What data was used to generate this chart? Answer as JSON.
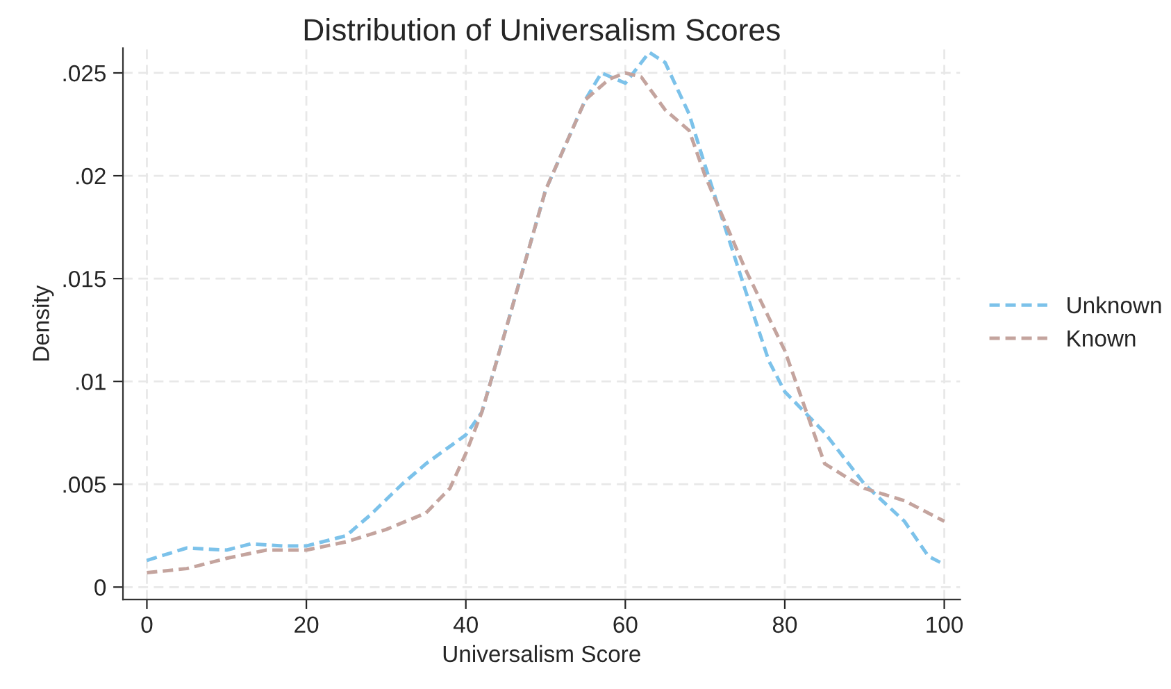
{
  "chart_data": {
    "type": "line",
    "title": "Distribution of Universalism Scores",
    "xlabel": "Universalism Score",
    "ylabel": "Density",
    "xlim": [
      -3,
      102
    ],
    "xticks": [
      0,
      20,
      40,
      60,
      80,
      100
    ],
    "ylim": [
      -0.0006,
      0.0262
    ],
    "yticks": [
      0,
      {
        "value": 0.005,
        "label": ".005"
      },
      {
        "value": 0.01,
        "label": ".01"
      },
      {
        "value": 0.015,
        "label": ".015"
      },
      {
        "value": 0.02,
        "label": ".02"
      },
      {
        "value": 0.025,
        "label": ".025"
      }
    ],
    "grid": true,
    "legend": "right",
    "line_style": "dashed",
    "marker": "none",
    "series": [
      {
        "name": "Unknown",
        "color": "#7cc2ea",
        "x": [
          0,
          5,
          10,
          13,
          17,
          20,
          25,
          28,
          32,
          35,
          40,
          42,
          45,
          50,
          55,
          57,
          60,
          63,
          65,
          68,
          70,
          75,
          78,
          80,
          85,
          90,
          95,
          98,
          100
        ],
        "values": [
          0.0013,
          0.0019,
          0.0018,
          0.0021,
          0.002,
          0.002,
          0.0025,
          0.0035,
          0.005,
          0.006,
          0.0074,
          0.0085,
          0.0125,
          0.0193,
          0.0237,
          0.025,
          0.0245,
          0.026,
          0.0255,
          0.023,
          0.0205,
          0.0145,
          0.011,
          0.0095,
          0.0075,
          0.005,
          0.0032,
          0.0015,
          0.0011
        ]
      },
      {
        "name": "Known",
        "color": "#c4a49e",
        "x": [
          0,
          5,
          10,
          15,
          20,
          25,
          30,
          35,
          38,
          40,
          42,
          45,
          50,
          55,
          58,
          60,
          62,
          65,
          68,
          70,
          75,
          80,
          85,
          90,
          95,
          100
        ],
        "values": [
          0.0007,
          0.0009,
          0.0014,
          0.0018,
          0.0018,
          0.0022,
          0.0028,
          0.0036,
          0.0048,
          0.0065,
          0.0085,
          0.0125,
          0.0193,
          0.0237,
          0.0247,
          0.025,
          0.0248,
          0.0232,
          0.0222,
          0.02,
          0.0155,
          0.0115,
          0.006,
          0.0048,
          0.0042,
          0.0032
        ]
      }
    ]
  }
}
